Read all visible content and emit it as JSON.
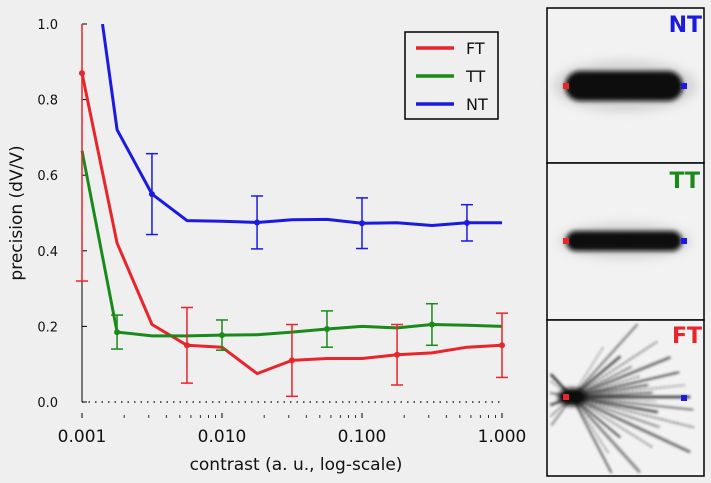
{
  "chart_data": {
    "type": "line",
    "xlabel": "contrast (a. u., log-scale)",
    "ylabel": "precision (dV/V)",
    "x_scale": "log",
    "xlim": [
      0.001,
      1.0
    ],
    "ylim": [
      -0.05,
      1.0
    ],
    "x_ticks": [
      0.001,
      0.01,
      0.1,
      1.0
    ],
    "x_tick_labels": [
      "0.001",
      "0.010",
      "0.100",
      "1.000"
    ],
    "y_ticks": [
      0.0,
      0.2,
      0.4,
      0.6,
      0.8,
      1.0
    ],
    "y_tick_labels": [
      "0.0",
      "0.2",
      "0.4",
      "0.6",
      "0.8",
      "1.0"
    ],
    "reference_line": {
      "y": 0.0,
      "style": "dotted"
    },
    "legend": {
      "position": "top-right"
    },
    "series": [
      {
        "name": "FT",
        "color": "#e8252a",
        "points": [
          {
            "x": 0.001,
            "y": 0.87
          },
          {
            "x": 0.00178,
            "y": 0.42
          },
          {
            "x": 0.00316,
            "y": 0.205
          },
          {
            "x": 0.00562,
            "y": 0.15
          },
          {
            "x": 0.01,
            "y": 0.145
          },
          {
            "x": 0.0178,
            "y": 0.075
          },
          {
            "x": 0.0316,
            "y": 0.11
          },
          {
            "x": 0.0562,
            "y": 0.115
          },
          {
            "x": 0.1,
            "y": 0.115
          },
          {
            "x": 0.178,
            "y": 0.125
          },
          {
            "x": 0.316,
            "y": 0.13
          },
          {
            "x": 0.562,
            "y": 0.145
          },
          {
            "x": 1.0,
            "y": 0.15
          }
        ],
        "error_bars": [
          {
            "x": 0.001,
            "y": 0.87,
            "err": 0.55
          },
          {
            "x": 0.00562,
            "y": 0.15,
            "err": 0.1
          },
          {
            "x": 0.0316,
            "y": 0.11,
            "err": 0.095
          },
          {
            "x": 0.178,
            "y": 0.125,
            "err": 0.08
          },
          {
            "x": 1.0,
            "y": 0.15,
            "err": 0.085
          }
        ]
      },
      {
        "name": "TT",
        "color": "#1a8a1a",
        "points": [
          {
            "x": 0.001,
            "y": 0.665
          },
          {
            "x": 0.00178,
            "y": 0.185
          },
          {
            "x": 0.00316,
            "y": 0.175
          },
          {
            "x": 0.00562,
            "y": 0.175
          },
          {
            "x": 0.01,
            "y": 0.177
          },
          {
            "x": 0.0178,
            "y": 0.178
          },
          {
            "x": 0.0316,
            "y": 0.185
          },
          {
            "x": 0.0562,
            "y": 0.193
          },
          {
            "x": 0.1,
            "y": 0.2
          },
          {
            "x": 0.178,
            "y": 0.196
          },
          {
            "x": 0.316,
            "y": 0.205
          },
          {
            "x": 0.562,
            "y": 0.203
          },
          {
            "x": 1.0,
            "y": 0.2
          }
        ],
        "error_bars": [
          {
            "x": 0.00178,
            "y": 0.185,
            "err": 0.045
          },
          {
            "x": 0.01,
            "y": 0.177,
            "err": 0.04
          },
          {
            "x": 0.0562,
            "y": 0.193,
            "err": 0.048
          },
          {
            "x": 0.316,
            "y": 0.205,
            "err": 0.055
          }
        ]
      },
      {
        "name": "NT",
        "color": "#1a1ae0",
        "points": [
          {
            "x": 0.0014,
            "y": 1.0
          },
          {
            "x": 0.00178,
            "y": 0.72
          },
          {
            "x": 0.00316,
            "y": 0.55
          },
          {
            "x": 0.00562,
            "y": 0.48
          },
          {
            "x": 0.01,
            "y": 0.478
          },
          {
            "x": 0.0178,
            "y": 0.475
          },
          {
            "x": 0.0316,
            "y": 0.482
          },
          {
            "x": 0.0562,
            "y": 0.483
          },
          {
            "x": 0.1,
            "y": 0.473
          },
          {
            "x": 0.178,
            "y": 0.474
          },
          {
            "x": 0.316,
            "y": 0.467
          },
          {
            "x": 0.562,
            "y": 0.474
          },
          {
            "x": 1.0,
            "y": 0.474
          }
        ],
        "error_bars": [
          {
            "x": 0.00316,
            "y": 0.55,
            "err": 0.107
          },
          {
            "x": 0.0178,
            "y": 0.475,
            "err": 0.07
          },
          {
            "x": 0.1,
            "y": 0.473,
            "err": 0.067
          },
          {
            "x": 0.562,
            "y": 0.474,
            "err": 0.048
          }
        ]
      }
    ]
  },
  "panels": [
    {
      "label": "NT",
      "color": "#1a1ae0",
      "style": "band"
    },
    {
      "label": "TT",
      "color": "#1a8a1a",
      "style": "band"
    },
    {
      "label": "FT",
      "color": "#e8252a",
      "style": "rays"
    }
  ]
}
